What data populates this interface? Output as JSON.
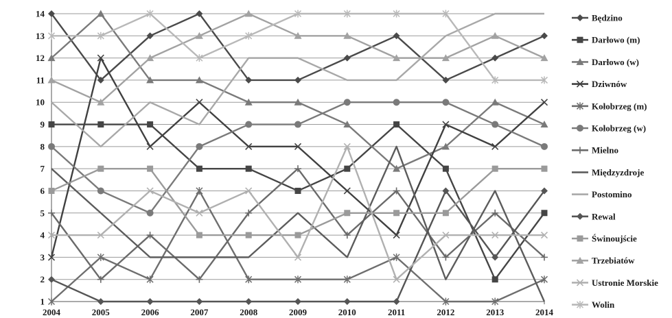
{
  "chart_data": {
    "type": "line",
    "title": "",
    "xlabel": "",
    "ylabel": "",
    "x": [
      "2004",
      "2005",
      "2006",
      "2007",
      "2008",
      "2009",
      "2010",
      "2011",
      "2012",
      "2013",
      "2014"
    ],
    "ylim": [
      1,
      14
    ],
    "yticks": [
      1,
      2,
      3,
      4,
      5,
      6,
      7,
      8,
      9,
      10,
      11,
      12,
      13,
      14
    ],
    "grid": true,
    "legend": "right",
    "series": [
      {
        "name": "Będzino",
        "marker": "diamond",
        "color": "#4a4a4a",
        "values": [
          14,
          11,
          13,
          14,
          11,
          11,
          12,
          13,
          11,
          12,
          13
        ]
      },
      {
        "name": "Darłowo (m)",
        "marker": "square",
        "color": "#454545",
        "values": [
          9,
          9,
          9,
          7,
          7,
          6,
          7,
          9,
          7,
          2,
          5
        ]
      },
      {
        "name": "Darłowo (w)",
        "marker": "triangle",
        "color": "#7a7a7a",
        "values": [
          12,
          14,
          11,
          11,
          10,
          10,
          9,
          7,
          8,
          10,
          9
        ]
      },
      {
        "name": "Dziwnów",
        "marker": "x",
        "color": "#404040",
        "values": [
          3,
          12,
          8,
          10,
          8,
          8,
          6,
          4,
          9,
          8,
          10
        ]
      },
      {
        "name": "Kołobrzeg (m)",
        "marker": "star",
        "color": "#6e6e6e",
        "values": [
          1,
          3,
          2,
          6,
          2,
          2,
          2,
          3,
          1,
          1,
          2
        ]
      },
      {
        "name": "Kołobrzeg (w)",
        "marker": "circle",
        "color": "#7a7a7a",
        "values": [
          8,
          6,
          5,
          8,
          9,
          9,
          10,
          10,
          10,
          9,
          8
        ]
      },
      {
        "name": "Mielno",
        "marker": "plus",
        "color": "#6a6a6a",
        "values": [
          5,
          2,
          4,
          2,
          5,
          7,
          4,
          6,
          3,
          5,
          3
        ]
      },
      {
        "name": "Międzyzdroje",
        "marker": "none",
        "color": "#5c5c5c",
        "values": [
          7,
          5,
          3,
          3,
          3,
          5,
          3,
          8,
          2,
          6,
          1
        ]
      },
      {
        "name": "Postomino",
        "marker": "none",
        "color": "#a8a8a8",
        "values": [
          10,
          8,
          10,
          9,
          12,
          12,
          11,
          11,
          13,
          14,
          14
        ]
      },
      {
        "name": "Rewal",
        "marker": "diamond",
        "color": "#555555",
        "values": [
          2,
          1,
          1,
          1,
          1,
          1,
          1,
          1,
          6,
          3,
          6
        ]
      },
      {
        "name": "Świnoujście",
        "marker": "square",
        "color": "#9a9a9a",
        "values": [
          6,
          7,
          7,
          4,
          4,
          4,
          5,
          5,
          5,
          7,
          7
        ]
      },
      {
        "name": "Trzebiatów",
        "marker": "triangle",
        "color": "#a2a2a2",
        "values": [
          11,
          10,
          12,
          13,
          14,
          13,
          13,
          12,
          12,
          13,
          12
        ]
      },
      {
        "name": "Ustronie Morskie",
        "marker": "x",
        "color": "#b0b0b0",
        "values": [
          4,
          4,
          6,
          5,
          6,
          3,
          8,
          2,
          4,
          4,
          4
        ]
      },
      {
        "name": "Wolin",
        "marker": "star",
        "color": "#b8b8b8",
        "values": [
          13,
          13,
          14,
          12,
          13,
          14,
          14,
          14,
          14,
          11,
          11
        ]
      }
    ]
  }
}
